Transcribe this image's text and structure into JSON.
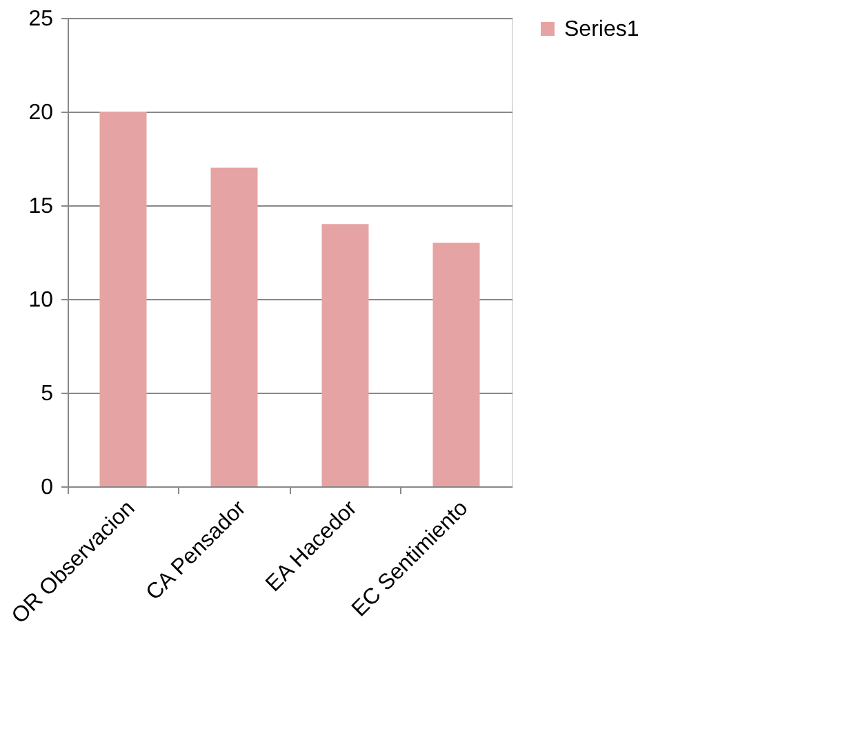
{
  "chart_data": {
    "type": "bar",
    "categories": [
      "OR Observacion",
      "CA Pensador",
      "EA Hacedor",
      "EC Sentimiento"
    ],
    "series": [
      {
        "name": "Series1",
        "color": "#e6a3a3",
        "values": [
          20,
          17,
          14,
          13
        ]
      }
    ],
    "ylim": [
      0,
      25
    ],
    "yticks": [
      0,
      5,
      10,
      15,
      20,
      25
    ],
    "grid": "y",
    "legend": "right"
  }
}
